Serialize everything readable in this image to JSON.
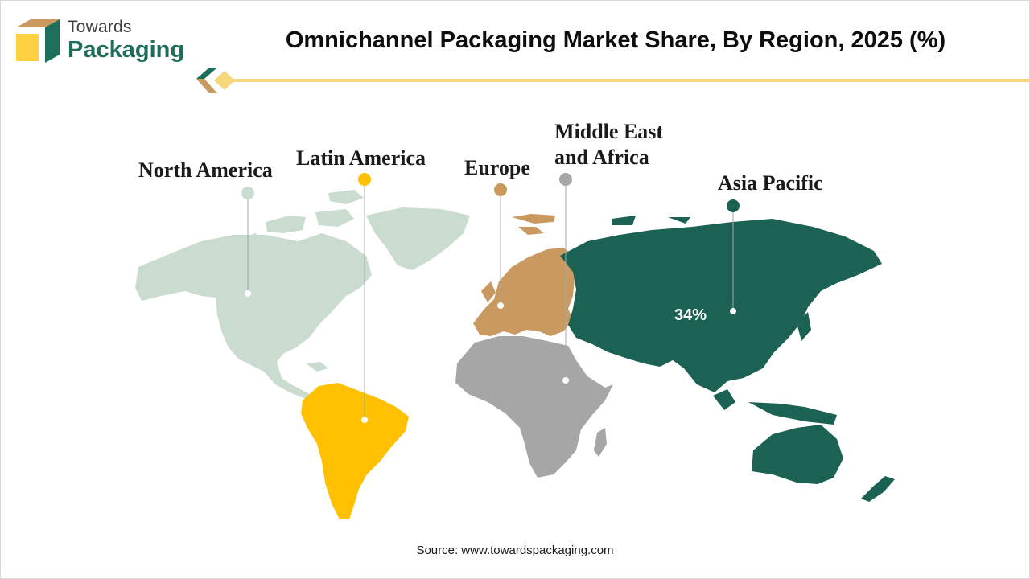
{
  "brand": {
    "line1": "Towards",
    "line2": "Packaging"
  },
  "title": "Omnichannel Packaging Market Share, By Region, 2025 (%)",
  "source": "Source: www.towardspackaging.com",
  "colors": {
    "north_america": "#c9dccf",
    "latin_america": "#ffc000",
    "europe": "#c9995f",
    "middle_east_africa": "#a6a6a6",
    "asia_pacific": "#1b6154",
    "accent": "#f6d77b",
    "brand_green": "#1e6e5c"
  },
  "regions": [
    {
      "id": "north_america",
      "label": "North America",
      "value": ""
    },
    {
      "id": "latin_america",
      "label": "Latin America",
      "value": ""
    },
    {
      "id": "europe",
      "label": "Europe",
      "value": ""
    },
    {
      "id": "middle_east_africa",
      "label_line1": "Middle East",
      "label_line2": "and Africa",
      "value": ""
    },
    {
      "id": "asia_pacific",
      "label": "Asia Pacific",
      "value": "34%"
    }
  ]
}
